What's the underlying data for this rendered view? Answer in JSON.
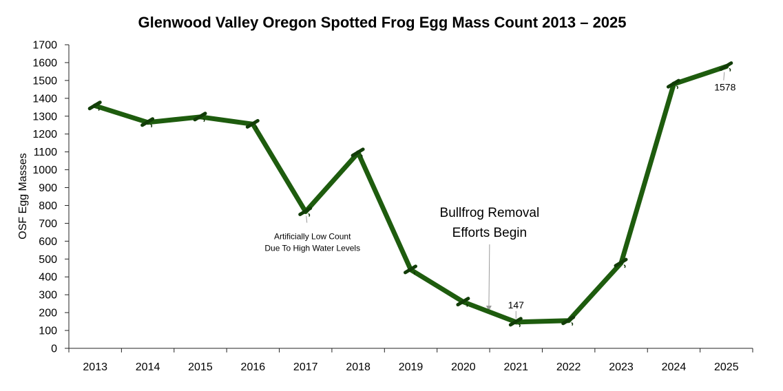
{
  "chart_data": {
    "type": "line",
    "title": "Glenwood Valley Oregon Spotted Frog Egg Mass Count 2013 – 2025",
    "xlabel": "",
    "ylabel": "OSF Egg Masses",
    "ylim": [
      0,
      1700
    ],
    "ytick_step": 100,
    "grid": false,
    "categories": [
      "2013",
      "2014",
      "2015",
      "2016",
      "2017",
      "2018",
      "2019",
      "2020",
      "2021",
      "2022",
      "2023",
      "2024",
      "2025"
    ],
    "series": [
      {
        "name": "OSF Egg Masses",
        "color": "#1e5c0e",
        "values": [
          1358,
          1265,
          1296,
          1255,
          765,
          1095,
          440,
          260,
          147,
          155,
          478,
          1480,
          1578
        ]
      }
    ],
    "data_labels": [
      {
        "category": "2021",
        "value": 147,
        "text": "147"
      },
      {
        "category": "2025",
        "value": 1578,
        "text": "1578"
      }
    ],
    "annotations": [
      {
        "category": "2017",
        "lines": [
          "Artificially Low Count",
          "Due To High Water Levels"
        ]
      },
      {
        "category": "2020",
        "lines": [
          "Bullfrog Removal",
          "Efforts Begin"
        ]
      }
    ]
  }
}
